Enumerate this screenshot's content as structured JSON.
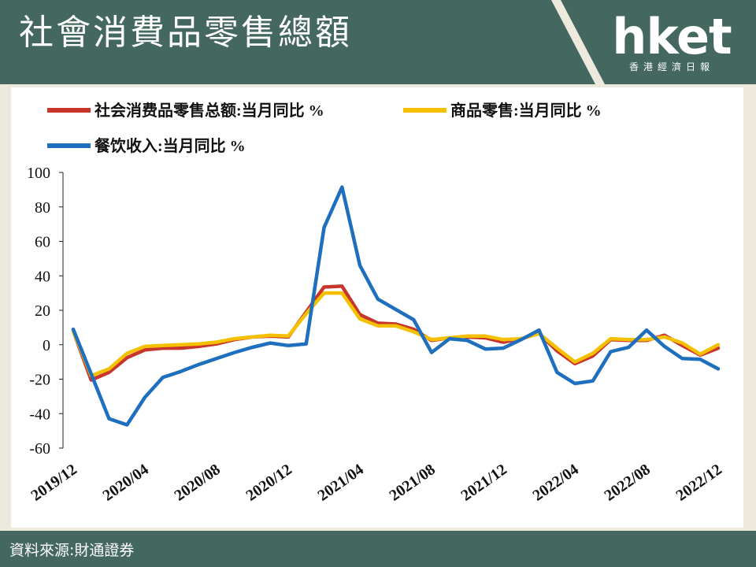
{
  "header": {
    "title": "社會消費品零售總額",
    "logo_text": "hket",
    "logo_sub": "香港經濟日報"
  },
  "footer": {
    "source": "資料來源:財通證券"
  },
  "colors": {
    "header_bg": "#44685f",
    "red": "#c8352d",
    "yellow": "#f5c000",
    "blue": "#1f6fbf"
  },
  "chart_data": {
    "type": "line",
    "ylim": [
      -60,
      100
    ],
    "yticks": [
      "100",
      "80",
      "60",
      "40",
      "20",
      "0",
      "-20",
      "-40",
      "-60"
    ],
    "ytick_values": [
      100,
      80,
      60,
      40,
      20,
      0,
      -20,
      -40,
      -60
    ],
    "x": [
      "2019/12",
      "2020/01",
      "2020/02",
      "2020/03",
      "2020/04",
      "2020/05",
      "2020/06",
      "2020/07",
      "2020/08",
      "2020/09",
      "2020/10",
      "2020/11",
      "2020/12",
      "2021/01",
      "2021/02",
      "2021/03",
      "2021/04",
      "2021/05",
      "2021/06",
      "2021/07",
      "2021/08",
      "2021/09",
      "2021/10",
      "2021/11",
      "2021/12",
      "2022/01",
      "2022/02",
      "2022/03",
      "2022/04",
      "2022/05",
      "2022/06",
      "2022/07",
      "2022/08",
      "2022/09",
      "2022/10",
      "2022/11",
      "2022/12"
    ],
    "xtick_labels": [
      "2019/12",
      "2020/04",
      "2020/08",
      "2020/12",
      "2021/04",
      "2021/08",
      "2021/12",
      "2022/04",
      "2022/08",
      "2022/12"
    ],
    "xtick_index": [
      0,
      4,
      8,
      12,
      16,
      20,
      24,
      28,
      32,
      36
    ],
    "series": [
      {
        "name": "社会消费品零售总额:当月同比 %",
        "color": "#c8352d",
        "values": [
          8,
          -20.5,
          -16,
          -7.5,
          -3,
          -2,
          -2,
          -1,
          0.5,
          3,
          4.5,
          5,
          4.5,
          19,
          33.5,
          34,
          17.5,
          12.5,
          12,
          9,
          2.5,
          4,
          4.5,
          4,
          1.5,
          3.5,
          6.5,
          -3.5,
          -11,
          -6.5,
          3,
          2.5,
          2.5,
          5.5,
          -0.5,
          -6,
          -2
        ]
      },
      {
        "name": "商品零售:当月同比 %",
        "color": "#f5c000",
        "values": [
          8,
          -18,
          -14,
          -5,
          -1,
          -0.5,
          0,
          0.5,
          1.5,
          3.5,
          4.5,
          5.5,
          5,
          18,
          30,
          30,
          15,
          11,
          11,
          7.5,
          3,
          4,
          5,
          5,
          3,
          3.5,
          6.5,
          -2,
          -10,
          -5,
          3.5,
          3,
          3,
          4.5,
          1,
          -5.5,
          0
        ]
      },
      {
        "name": "餐饮收入:当月同比 %",
        "color": "#1f6fbf",
        "values": [
          9,
          -17,
          -43,
          -46.5,
          -30.5,
          -19,
          -15.5,
          -11.5,
          -8,
          -4.5,
          -1.5,
          1,
          -0.5,
          0.5,
          68,
          91.5,
          46,
          26.5,
          20.5,
          14.5,
          -4.5,
          3.5,
          2.5,
          -2.5,
          -2,
          3,
          8.5,
          -16,
          -22.5,
          -21,
          -4,
          -1.5,
          8.5,
          -1,
          -8,
          -8.5,
          -14
        ]
      }
    ]
  }
}
